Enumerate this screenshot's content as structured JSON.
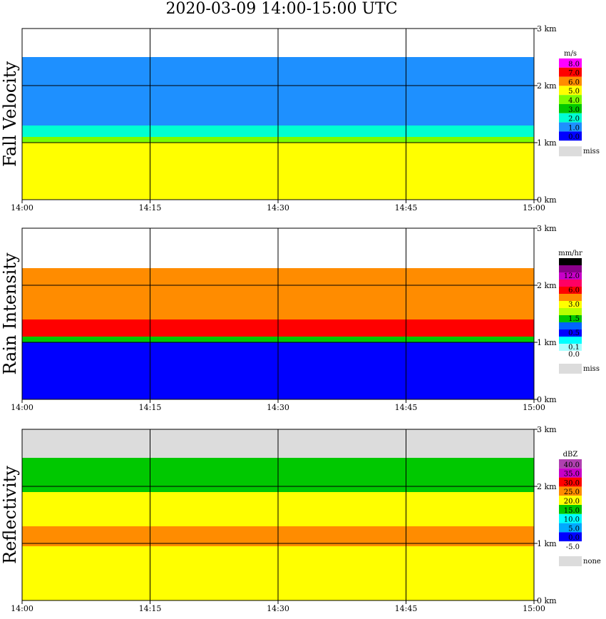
{
  "title": "2020-03-09   14:00-15:00 UTC",
  "colors": {
    "background": "#ffffff",
    "missing": "#dcdcdc",
    "grid": "#000000"
  },
  "chart_data": [
    {
      "type": "heatmap",
      "name": "fall_velocity",
      "ylabel": "Fall Velocity",
      "x_ticks": [
        "14:00",
        "14:15",
        "14:30",
        "14:45",
        "15:00"
      ],
      "y_ticks": [
        "0 km",
        "1 km",
        "2 km",
        "3 km"
      ],
      "ylim_km": [
        0,
        3
      ],
      "xlim": [
        "14:00",
        "15:00"
      ],
      "grid": true,
      "legend_unit": "m/s",
      "legend": [
        {
          "label": "8.0",
          "color": "#ff00ff"
        },
        {
          "label": "7.0",
          "color": "#ff0000"
        },
        {
          "label": "6.0",
          "color": "#ff8c00"
        },
        {
          "label": "5.0",
          "color": "#ffff00"
        },
        {
          "label": "4.0",
          "color": "#7cfc00"
        },
        {
          "label": "3.0",
          "color": "#00c800"
        },
        {
          "label": "2.0",
          "color": "#00ffd2"
        },
        {
          "label": "1.0",
          "color": "#1e90ff"
        },
        {
          "label": "0.0",
          "color": "#0000ff"
        },
        {
          "label": "miss",
          "color": "#dcdcdc"
        }
      ],
      "layers": [
        {
          "from_km": 0.0,
          "to_km": 1.0,
          "color": "#ffff00"
        },
        {
          "from_km": 1.0,
          "to_km": 1.1,
          "color": "#7cfc00"
        },
        {
          "from_km": 1.1,
          "to_km": 1.3,
          "color": "#00ffd2"
        },
        {
          "from_km": 1.3,
          "to_km": 2.5,
          "color": "#1e90ff"
        }
      ]
    },
    {
      "type": "heatmap",
      "name": "rain_intensity",
      "ylabel": "Rain Intensity",
      "x_ticks": [
        "14:00",
        "14:15",
        "14:30",
        "14:45",
        "15:00"
      ],
      "y_ticks": [
        "0 km",
        "1 km",
        "2 km",
        "3 km"
      ],
      "ylim_km": [
        0,
        3
      ],
      "xlim": [
        "14:00",
        "15:00"
      ],
      "grid": true,
      "legend_unit": "mm/hr",
      "legend": [
        {
          "label": "48.0",
          "color": "#000000"
        },
        {
          "label": "",
          "color": "#8b008b"
        },
        {
          "label": "12.0",
          "color": "#c800c8"
        },
        {
          "label": "",
          "color": "#ff0064"
        },
        {
          "label": "6.0",
          "color": "#ff0000"
        },
        {
          "label": "",
          "color": "#ff8c00"
        },
        {
          "label": "3.0",
          "color": "#ffff00"
        },
        {
          "label": "",
          "color": "#b4ff00"
        },
        {
          "label": "1.5",
          "color": "#00c800"
        },
        {
          "label": "",
          "color": "#0064ff"
        },
        {
          "label": "0.5",
          "color": "#0000ff"
        },
        {
          "label": "",
          "color": "#00ffff"
        },
        {
          "label": "0.1",
          "color": "#aaffff"
        },
        {
          "label": "0.0",
          "color": "#ffffff"
        },
        {
          "label": "miss",
          "color": "#dcdcdc"
        }
      ],
      "layers": [
        {
          "from_km": 0.0,
          "to_km": 1.0,
          "color": "#0000ff"
        },
        {
          "from_km": 1.0,
          "to_km": 1.1,
          "color": "#00c800"
        },
        {
          "from_km": 1.1,
          "to_km": 1.4,
          "color": "#ff0000"
        },
        {
          "from_km": 1.4,
          "to_km": 2.3,
          "color": "#ff8c00"
        }
      ]
    },
    {
      "type": "heatmap",
      "name": "reflectivity",
      "ylabel": "Reflectivity",
      "x_ticks": [
        "14:00",
        "14:15",
        "14:30",
        "14:45",
        "15:00"
      ],
      "y_ticks": [
        "0 km",
        "1 km",
        "2 km",
        "3 km"
      ],
      "ylim_km": [
        0,
        3
      ],
      "xlim": [
        "14:00",
        "15:00"
      ],
      "grid": true,
      "legend_unit": "dBZ",
      "legend": [
        {
          "label": "40.0",
          "color": "#b040b0"
        },
        {
          "label": "35.0",
          "color": "#c800c8"
        },
        {
          "label": "30.0",
          "color": "#ff0000"
        },
        {
          "label": "25.0",
          "color": "#ff8c00"
        },
        {
          "label": "20.0",
          "color": "#ffff00"
        },
        {
          "label": "15.0",
          "color": "#00c800"
        },
        {
          "label": "10.0",
          "color": "#00ffff"
        },
        {
          "label": "5.0",
          "color": "#00aaff"
        },
        {
          "label": "0.0",
          "color": "#0000ff"
        },
        {
          "label": "-5.0",
          "color": "#ffffff"
        },
        {
          "label": "none",
          "color": "#dcdcdc"
        }
      ],
      "layers": [
        {
          "from_km": 0.0,
          "to_km": 0.95,
          "color": "#ffff00"
        },
        {
          "from_km": 0.95,
          "to_km": 1.3,
          "color": "#ff8c00"
        },
        {
          "from_km": 1.3,
          "to_km": 1.9,
          "color": "#ffff00"
        },
        {
          "from_km": 1.9,
          "to_km": 2.5,
          "color": "#00c800"
        }
      ]
    }
  ]
}
